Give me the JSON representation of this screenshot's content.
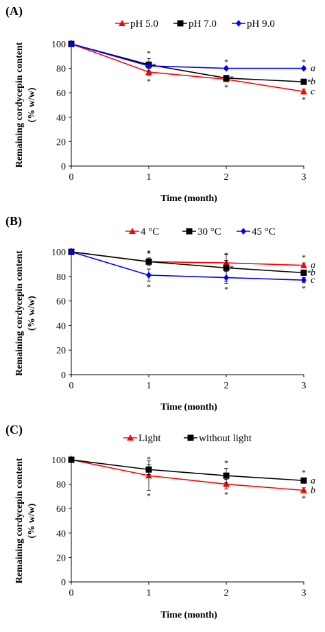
{
  "chart_data": [
    {
      "type": "line",
      "panel_label": "(A)",
      "xlabel": "Time (month)",
      "ylabel_line1": "Remaining cordycepin content",
      "ylabel_line2": "(% w/w)",
      "x": [
        0,
        1,
        2,
        3
      ],
      "xticks": [
        "0",
        "1",
        "2",
        "3"
      ],
      "yticks": [
        "0",
        "20",
        "40",
        "60",
        "80",
        "100"
      ],
      "xlim": [
        0,
        3
      ],
      "ylim": [
        0,
        100
      ],
      "series": [
        {
          "name": "pH 5.0",
          "color": "#ff0000",
          "marker": "triangle",
          "values": [
            100,
            77,
            71,
            61
          ],
          "errors": [
            0,
            3,
            2,
            2
          ],
          "letter": "c"
        },
        {
          "name": "pH 7.0",
          "color": "#000000",
          "marker": "square",
          "values": [
            100,
            83,
            72,
            69
          ],
          "errors": [
            0,
            5,
            2,
            2
          ],
          "letter": "b"
        },
        {
          "name": "pH 9.0",
          "color": "#0000ff",
          "marker": "diamond",
          "values": [
            100,
            82,
            80,
            80
          ],
          "errors": [
            0,
            2,
            1,
            1
          ],
          "letter": "a"
        }
      ],
      "significance_mark": "*"
    },
    {
      "type": "line",
      "panel_label": "(B)",
      "xlabel": "Time (month)",
      "ylabel_line1": "Remaining cordycepin content",
      "ylabel_line2": "(% w/w)",
      "x": [
        0,
        1,
        2,
        3
      ],
      "xticks": [
        "0",
        "1",
        "2",
        "3"
      ],
      "yticks": [
        "0",
        "20",
        "40",
        "60",
        "80",
        "100"
      ],
      "xlim": [
        0,
        3
      ],
      "ylim": [
        0,
        100
      ],
      "series": [
        {
          "name": "4 °C",
          "color": "#ff0000",
          "marker": "triangle",
          "values": [
            100,
            92,
            91,
            89
          ],
          "errors": [
            0,
            2,
            2,
            2
          ],
          "letter": "a"
        },
        {
          "name": "30 °C",
          "color": "#000000",
          "marker": "square",
          "values": [
            100,
            92,
            87,
            83
          ],
          "errors": [
            0,
            3,
            11,
            2
          ],
          "letter": "b"
        },
        {
          "name": "45 °C",
          "color": "#0000ff",
          "marker": "diamond",
          "values": [
            100,
            81,
            79,
            77
          ],
          "errors": [
            0,
            5,
            5,
            2
          ],
          "letter": "c"
        }
      ],
      "significance_mark": "*"
    },
    {
      "type": "line",
      "panel_label": "(C)",
      "xlabel": "Time (month)",
      "ylabel_line1": "Remaining cordycepin content",
      "ylabel_line2": "(% w/w)",
      "x": [
        0,
        1,
        2,
        3
      ],
      "xticks": [
        "0",
        "1",
        "2",
        "3"
      ],
      "yticks": [
        "0",
        "20",
        "40",
        "60",
        "80",
        "100"
      ],
      "xlim": [
        0,
        3
      ],
      "ylim": [
        0,
        100
      ],
      "series": [
        {
          "name": "Light",
          "color": "#ff0000",
          "marker": "triangle",
          "values": [
            100,
            87,
            80,
            75
          ],
          "errors": [
            0,
            12,
            4,
            2
          ],
          "letter": "b"
        },
        {
          "name": "without light",
          "color": "#000000",
          "marker": "square",
          "values": [
            100,
            92,
            87,
            83
          ],
          "errors": [
            0,
            4,
            6,
            2
          ],
          "letter": "a"
        }
      ],
      "significance_mark": "*"
    }
  ]
}
